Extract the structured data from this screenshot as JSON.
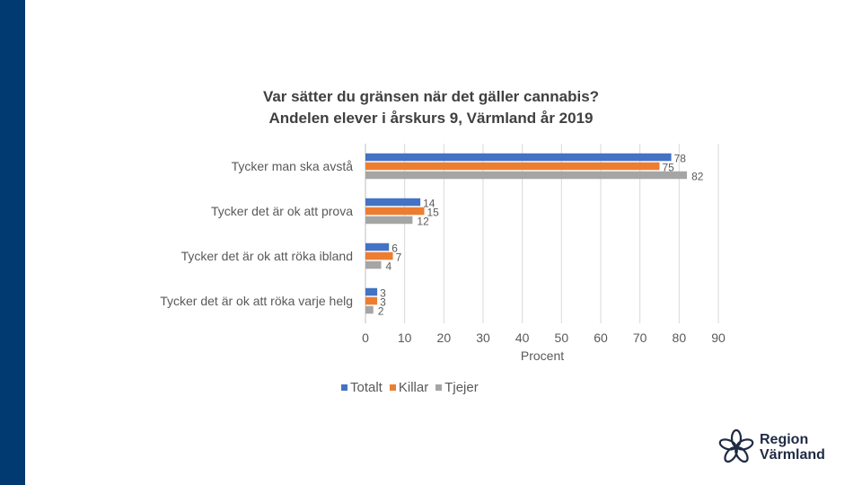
{
  "colors": {
    "sidebar": "#003A70",
    "totalt": "#4472C4",
    "killar": "#ED7D31",
    "tjejer": "#A5A5A5",
    "grid": "#D9D9D9",
    "text": "#595959"
  },
  "chart_data": {
    "type": "bar",
    "orientation": "horizontal",
    "title": "Var sätter du gränsen när det gäller cannabis?",
    "subtitle": "Andelen elever i årskurs 9, Värmland år 2019",
    "categories": [
      "Tycker man ska avstå",
      "Tycker det är ok att prova",
      "Tycker det är ok att röka ibland",
      "Tycker det är ok att röka varje helg"
    ],
    "series": [
      {
        "name": "Totalt",
        "values": [
          78,
          14,
          6,
          3
        ]
      },
      {
        "name": "Killar",
        "values": [
          75,
          15,
          7,
          3
        ]
      },
      {
        "name": "Tjejer",
        "values": [
          82,
          12,
          4,
          2
        ]
      }
    ],
    "xlabel": "Procent",
    "ylabel": "",
    "xlim": [
      0,
      90
    ],
    "xticks": [
      0,
      10,
      20,
      30,
      40,
      50,
      60,
      70,
      80,
      90
    ],
    "grid": true,
    "legend": "bottom"
  },
  "logo": {
    "line1": "Region",
    "line2": "Värmland"
  }
}
